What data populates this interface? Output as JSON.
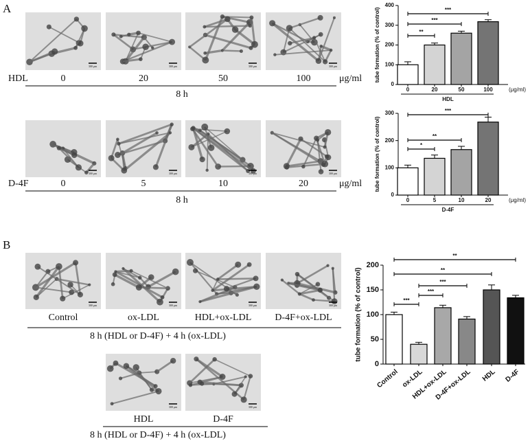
{
  "figure": {
    "panel_a": "A",
    "panel_b": "B",
    "scale_bar": "300 μm",
    "a_rows": [
      {
        "label": "HDL",
        "doses": [
          "0",
          "20",
          "50",
          "100"
        ],
        "unit": "μg/ml",
        "time": "8 h"
      },
      {
        "label": "D-4F",
        "doses": [
          "0",
          "5",
          "10",
          "20"
        ],
        "unit": "μg/ml",
        "time": "8 h"
      }
    ],
    "b_rows": [
      {
        "labels": [
          "Control",
          "ox-LDL",
          "HDL+ox-LDL",
          "D-4F+ox-LDL"
        ],
        "time": "8 h (HDL or D-4F) + 4 h (ox-LDL)"
      },
      {
        "labels": [
          "HDL",
          "D-4F"
        ],
        "time": "8 h (HDL or D-4F) + 4 h (ox-LDL)"
      }
    ]
  },
  "chart_data": [
    {
      "type": "bar",
      "ylabel": "tube formation (% of control)",
      "xlabel": "HDL",
      "xunit": "(μg/ml)",
      "categories": [
        "0",
        "20",
        "50",
        "100"
      ],
      "values": [
        100,
        200,
        260,
        318
      ],
      "errors": [
        15,
        10,
        10,
        10
      ],
      "colors": [
        "#ffffff",
        "#d4d4d4",
        "#a4a4a4",
        "#747474"
      ],
      "ylim": [
        0,
        400
      ],
      "yticks": [
        0,
        100,
        200,
        300,
        400
      ],
      "significance": [
        {
          "between": [
            "0",
            "20"
          ],
          "label": "**"
        },
        {
          "between": [
            "0",
            "50"
          ],
          "label": "***"
        },
        {
          "between": [
            "0",
            "100"
          ],
          "label": "***"
        }
      ]
    },
    {
      "type": "bar",
      "ylabel": "tube formation (% of control)",
      "xlabel": "D-4F",
      "xunit": "(μg/ml)",
      "categories": [
        "0",
        "5",
        "10",
        "20"
      ],
      "values": [
        100,
        135,
        167,
        268
      ],
      "errors": [
        10,
        12,
        12,
        18
      ],
      "colors": [
        "#ffffff",
        "#d4d4d4",
        "#a4a4a4",
        "#747474"
      ],
      "ylim": [
        0,
        300
      ],
      "yticks": [
        0,
        100,
        200,
        300
      ],
      "significance": [
        {
          "between": [
            "0",
            "5"
          ],
          "label": "*"
        },
        {
          "between": [
            "0",
            "10"
          ],
          "label": "**"
        },
        {
          "between": [
            "0",
            "20"
          ],
          "label": "***"
        }
      ]
    },
    {
      "type": "bar",
      "ylabel": "tube formation (% of control)",
      "categories": [
        "Control",
        "ox-LDL",
        "HDL+ox-LDL",
        "D-4F+ox-LDL",
        "HDL",
        "D-4F"
      ],
      "values": [
        100,
        40,
        114,
        91,
        150,
        134
      ],
      "errors": [
        5,
        4,
        5,
        5,
        10,
        5
      ],
      "colors": [
        "#ffffff",
        "#d8d8d8",
        "#a8a8a8",
        "#888888",
        "#555555",
        "#111111"
      ],
      "ylim": [
        0,
        200
      ],
      "yticks": [
        0,
        50,
        100,
        150,
        200
      ],
      "significance": [
        {
          "between": [
            "Control",
            "ox-LDL"
          ],
          "label": "***"
        },
        {
          "between": [
            "ox-LDL",
            "HDL+ox-LDL"
          ],
          "label": "***"
        },
        {
          "between": [
            "ox-LDL",
            "D-4F+ox-LDL"
          ],
          "label": "***"
        },
        {
          "between": [
            "Control",
            "HDL"
          ],
          "label": "**"
        },
        {
          "between": [
            "Control",
            "D-4F"
          ],
          "label": "**"
        }
      ]
    }
  ]
}
